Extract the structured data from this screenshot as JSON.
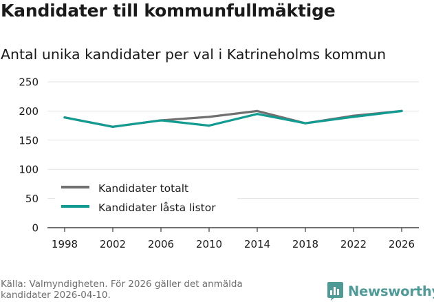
{
  "chart_data": {
    "type": "line",
    "title": "Kandidater till kommunfullmäktige",
    "subtitle": "Antal unika kandidater per val i Katrineholms kommun",
    "xlabel": "",
    "ylabel": "",
    "x": [
      "1998",
      "2002",
      "2006",
      "2010",
      "2014",
      "2018",
      "2022",
      "2026"
    ],
    "y_ticks": [
      "0",
      "50",
      "100",
      "150",
      "200",
      "250"
    ],
    "ylim": [
      0,
      250
    ],
    "grid": true,
    "legend_position": "bottom-left",
    "series": [
      {
        "name": "Kandidater totalt",
        "color": "#707070",
        "values": [
          189,
          173,
          184,
          190,
          200,
          179,
          192,
          200
        ]
      },
      {
        "name": "Kandidater låsta listor",
        "color": "#119b91",
        "values": [
          189,
          173,
          184,
          175,
          195,
          179,
          190,
          200
        ]
      }
    ]
  },
  "footer": {
    "source_line1": "Källa: Valmyndigheten. För 2026 gäller det anmälda",
    "source_line2": "kandidater 2026-04-10.",
    "brand": "Newsworthy",
    "brand_icon": "newsworthy-bar-chart-icon",
    "brand_color": "#4e9a97"
  }
}
